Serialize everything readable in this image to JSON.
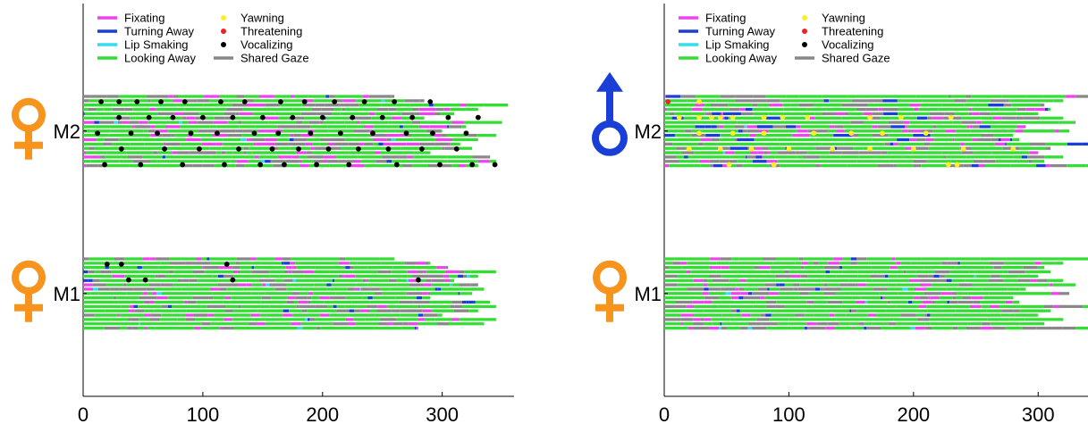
{
  "chart_data": [
    {
      "type": "timeline",
      "xlim": [
        0,
        360
      ],
      "xticks": [
        0,
        100,
        200,
        300
      ],
      "tick_labels": [
        "0",
        "100",
        "200",
        "300"
      ],
      "legend": [
        {
          "label": "Fixating",
          "kind": "line",
          "color": "#ee44ee"
        },
        {
          "label": "Turning Away",
          "kind": "line",
          "color": "#1a3fd6"
        },
        {
          "label": "Lip Smaking",
          "kind": "line",
          "color": "#33ddee"
        },
        {
          "label": "Looking Away",
          "kind": "line",
          "color": "#33dd33"
        },
        {
          "label": "Yawning",
          "kind": "dot",
          "color": "#ffee22"
        },
        {
          "label": "Threatening",
          "kind": "dot",
          "color": "#ee2222"
        },
        {
          "label": "Vocalizing",
          "kind": "dot",
          "color": "#000000"
        },
        {
          "label": "Shared Gaze",
          "kind": "line",
          "color": "#888888"
        }
      ],
      "groups": [
        {
          "label": "M2",
          "sex": "female",
          "sex_icon": "female-icon",
          "row_ends": [
            260,
            285,
            355,
            330,
            310,
            285,
            350,
            320,
            300,
            345,
            330,
            315,
            325,
            290,
            340,
            345,
            330
          ],
          "vocalizing": [
            [
              15,
              0
            ],
            [
              30,
              0
            ],
            [
              45,
              0
            ],
            [
              65,
              0
            ],
            [
              85,
              0
            ],
            [
              115,
              0
            ],
            [
              135,
              0
            ],
            [
              165,
              0
            ],
            [
              185,
              0
            ],
            [
              210,
              0
            ],
            [
              235,
              0
            ],
            [
              260,
              0
            ],
            [
              290,
              0
            ],
            [
              30,
              1
            ],
            [
              55,
              1
            ],
            [
              75,
              1
            ],
            [
              100,
              1
            ],
            [
              125,
              1
            ],
            [
              150,
              1
            ],
            [
              175,
              1
            ],
            [
              200,
              1
            ],
            [
              225,
              1
            ],
            [
              250,
              1
            ],
            [
              275,
              1
            ],
            [
              305,
              1
            ],
            [
              330,
              1
            ],
            [
              12,
              2
            ],
            [
              40,
              2
            ],
            [
              62,
              2
            ],
            [
              90,
              2
            ],
            [
              112,
              2
            ],
            [
              143,
              2
            ],
            [
              163,
              2
            ],
            [
              190,
              2
            ],
            [
              215,
              2
            ],
            [
              242,
              2
            ],
            [
              270,
              2
            ],
            [
              292,
              2
            ],
            [
              320,
              2
            ],
            [
              32,
              3
            ],
            [
              68,
              3
            ],
            [
              97,
              3
            ],
            [
              130,
              3
            ],
            [
              158,
              3
            ],
            [
              180,
              3
            ],
            [
              205,
              3
            ],
            [
              230,
              3
            ],
            [
              255,
              3
            ],
            [
              283,
              3
            ],
            [
              312,
              3
            ],
            [
              18,
              4
            ],
            [
              48,
              4
            ],
            [
              83,
              4
            ],
            [
              118,
              4
            ],
            [
              148,
              4
            ],
            [
              168,
              4
            ],
            [
              195,
              4
            ],
            [
              222,
              4
            ],
            [
              262,
              4
            ],
            [
              298,
              4
            ],
            [
              325,
              4
            ],
            [
              344,
              4
            ]
          ]
        },
        {
          "label": "M1",
          "sex": "female",
          "sex_icon": "female-icon",
          "row_ends": [
            260,
            290,
            305,
            345,
            330,
            310,
            330,
            335,
            325,
            290,
            340,
            345,
            330,
            300,
            345,
            335,
            280
          ],
          "vocalizing": [
            [
              20,
              0
            ],
            [
              32,
              0
            ],
            [
              120,
              0
            ],
            [
              38,
              1
            ],
            [
              52,
              1
            ],
            [
              125,
              1
            ],
            [
              280,
              1
            ]
          ]
        },
        {
          "label": "M2",
          "sex": "male",
          "sex_icon": "male-icon",
          "row_ends": [
            340,
            320,
            305,
            310,
            300,
            320,
            330,
            290,
            325,
            280,
            285,
            345,
            310,
            300,
            320,
            305,
            340
          ],
          "yawning": [
            [
              28,
              0
            ],
            [
              12,
              1
            ],
            [
              28,
              1
            ],
            [
              38,
              1
            ],
            [
              45,
              1
            ],
            [
              55,
              1
            ],
            [
              80,
              1
            ],
            [
              95,
              1
            ],
            [
              115,
              1
            ],
            [
              165,
              1
            ],
            [
              190,
              1
            ],
            [
              230,
              1
            ],
            [
              28,
              2
            ],
            [
              55,
              2
            ],
            [
              80,
              2
            ],
            [
              120,
              2
            ],
            [
              150,
              2
            ],
            [
              175,
              2
            ],
            [
              210,
              2
            ],
            [
              20,
              3
            ],
            [
              45,
              3
            ],
            [
              70,
              3
            ],
            [
              100,
              3
            ],
            [
              135,
              3
            ],
            [
              165,
              3
            ],
            [
              200,
              3
            ],
            [
              240,
              3
            ],
            [
              280,
              3
            ],
            [
              52,
              4
            ],
            [
              88,
              4
            ],
            [
              228,
              4
            ],
            [
              235,
              4
            ]
          ],
          "threatening": [
            [
              3,
              0
            ]
          ]
        },
        {
          "label": "M1",
          "sex": "female",
          "sex_icon": "female-icon",
          "row_ends": [
            340,
            320,
            305,
            310,
            300,
            320,
            330,
            290,
            325,
            280,
            285,
            345,
            310,
            300,
            320,
            305,
            340
          ]
        }
      ]
    }
  ],
  "colors": {
    "fixating": "#ee44ee",
    "turning_away": "#1a3fd6",
    "lip_smaking": "#33ddee",
    "looking_away": "#33dd33",
    "shared_gaze": "#888888",
    "female_symbol": "#f7941d",
    "male_symbol": "#1a3fd6"
  }
}
